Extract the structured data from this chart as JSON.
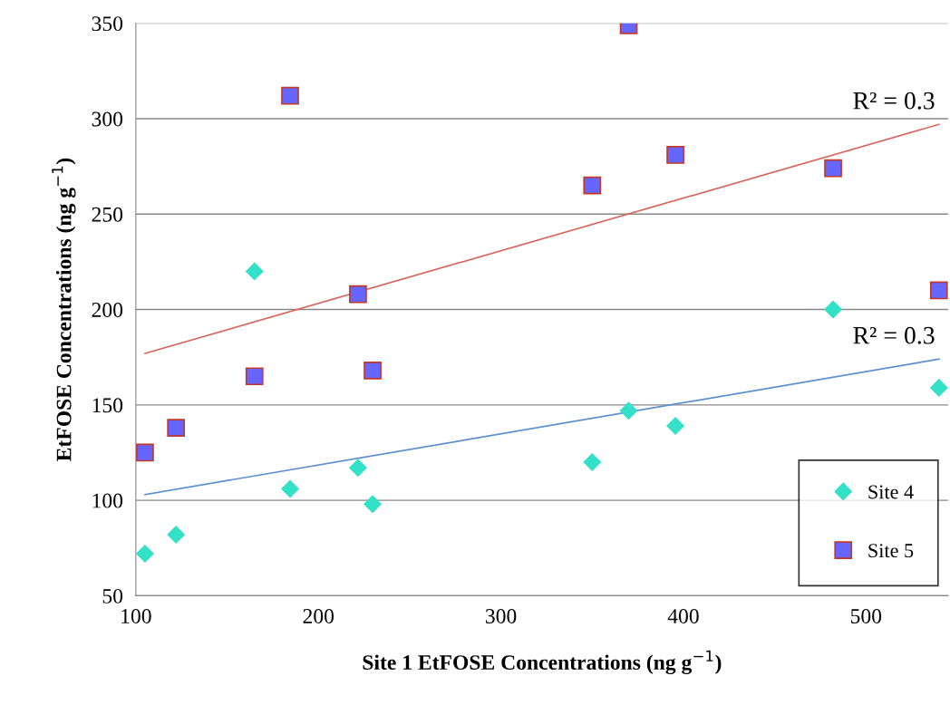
{
  "chart_data": {
    "type": "scatter",
    "xlabel": "Site 1 EtFOSE Concentrations (ng g$^{−1}$)",
    "ylabel": "EtFOSE Concentrations (ng g$^{−1}$)",
    "xlim": [
      100,
      545
    ],
    "xticks": [
      100,
      200,
      300,
      400,
      500
    ],
    "ylim": [
      50,
      350
    ],
    "yticks": [
      50,
      100,
      150,
      200,
      250,
      300,
      350
    ],
    "grid": "y",
    "legend": "bottom right",
    "series": [
      {
        "name": "Site 4",
        "color": "#33e0c8",
        "marker": "diamond",
        "x": [
          105,
          122,
          165,
          184.5,
          221.7,
          229.7,
          350,
          370,
          395.6,
          482,
          540
        ],
        "values": [
          72,
          82,
          220,
          106,
          117,
          98,
          120,
          147,
          139,
          200,
          159
        ]
      },
      {
        "name": "Site 5",
        "color": "#6666ff",
        "marker": "square",
        "x": [
          105,
          122,
          165,
          184.5,
          221.7,
          229.7,
          350,
          370,
          395.6,
          482,
          540
        ],
        "values": [
          125,
          138,
          165,
          312,
          208,
          168,
          265,
          349,
          281,
          274,
          210
        ]
      },
      {
        "type": "line",
        "color": "#d9665c",
        "marker": "none",
        "x": [
          105,
          540
        ],
        "values": [
          177,
          297
        ]
      },
      {
        "type": "line",
        "color": "#5b8fd0",
        "marker": "none",
        "x": [
          105,
          540
        ],
        "values": [
          103,
          174
        ]
      }
    ],
    "annotations": [
      "R² = 0.3",
      "R² = 0.3"
    ]
  }
}
